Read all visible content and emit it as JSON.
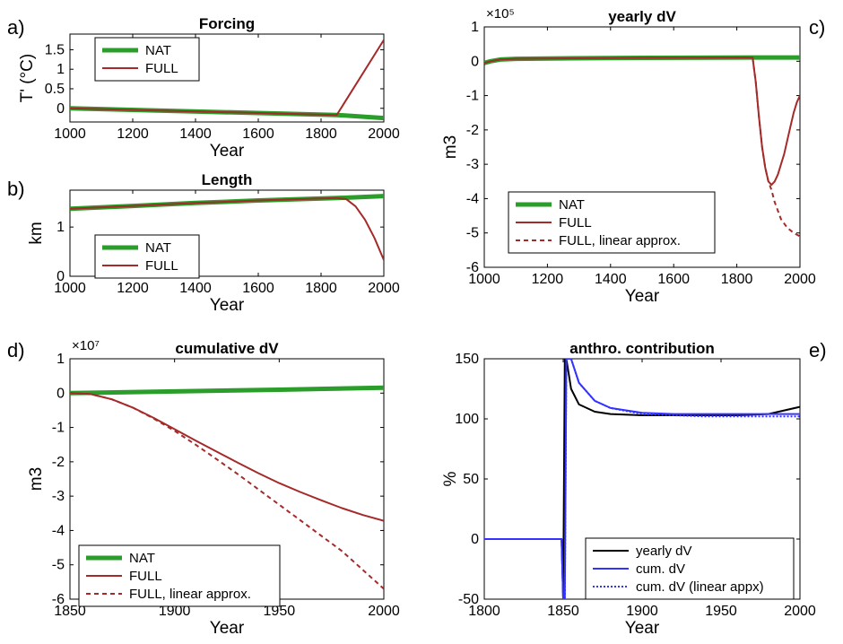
{
  "figure": {
    "panels": [
      {
        "id": "a",
        "letter": "a)"
      },
      {
        "id": "b",
        "letter": "b)"
      },
      {
        "id": "c",
        "letter": "c)"
      },
      {
        "id": "d",
        "letter": "d)"
      },
      {
        "id": "e",
        "letter": "e)"
      }
    ]
  },
  "colors": {
    "nat": "#2a9d2a",
    "full": "#a52a2a",
    "yearly": "#000000",
    "cum": "#3333ff",
    "cum_linear": "#3333ff"
  },
  "chart_data": [
    {
      "id": "a",
      "type": "line",
      "title": "Forcing",
      "xlabel": "Year",
      "ylabel": "T' (°C)",
      "xlim": [
        1000,
        2000
      ],
      "ylim": [
        -0.35,
        1.9
      ],
      "xticks": [
        1000,
        1200,
        1400,
        1600,
        1800,
        2000
      ],
      "yticks": [
        0,
        0.5,
        1,
        1.5
      ],
      "ytick_labels": [
        "0",
        "0.5",
        "1",
        "1.5"
      ],
      "legend_position": "top-left",
      "series": [
        {
          "name": "NAT",
          "x": [
            1000,
            1850,
            2000
          ],
          "y": [
            0.0,
            -0.17,
            -0.25
          ],
          "style": "thick",
          "color_key": "nat"
        },
        {
          "name": "FULL",
          "x": [
            1000,
            1850,
            2000
          ],
          "y": [
            0.0,
            -0.17,
            1.75
          ],
          "style": "solid",
          "color_key": "full"
        }
      ]
    },
    {
      "id": "b",
      "type": "line",
      "title": "Length",
      "xlabel": "Year",
      "ylabel": "km",
      "xlim": [
        1000,
        2000
      ],
      "ylim": [
        0,
        1.75
      ],
      "xticks": [
        1000,
        1200,
        1400,
        1600,
        1800,
        2000
      ],
      "yticks": [
        0,
        1
      ],
      "ytick_labels": [
        "0",
        "1"
      ],
      "legend_position": "bottom-left",
      "series": [
        {
          "name": "NAT",
          "x": [
            1000,
            1200,
            1400,
            1600,
            1850,
            2000
          ],
          "y": [
            1.37,
            1.43,
            1.49,
            1.54,
            1.59,
            1.63
          ],
          "style": "thick",
          "color_key": "nat"
        },
        {
          "name": "FULL",
          "x": [
            1000,
            1200,
            1400,
            1600,
            1850,
            1880,
            1910,
            1940,
            1970,
            2000
          ],
          "y": [
            1.37,
            1.43,
            1.49,
            1.54,
            1.59,
            1.57,
            1.42,
            1.15,
            0.78,
            0.33
          ],
          "style": "solid",
          "color_key": "full"
        }
      ]
    },
    {
      "id": "c",
      "type": "line",
      "title": "yearly dV",
      "xlabel": "Year",
      "ylabel": "m3",
      "exponent": "×10⁵",
      "xlim": [
        1000,
        2000
      ],
      "ylim": [
        -6,
        1
      ],
      "xticks": [
        1000,
        1200,
        1400,
        1600,
        1800,
        2000
      ],
      "yticks": [
        -6,
        -5,
        -4,
        -3,
        -2,
        -1,
        0,
        1
      ],
      "ytick_labels": [
        "-6",
        "-5",
        "-4",
        "-3",
        "-2",
        "-1",
        "0",
        "1"
      ],
      "legend_position": "bottom-left",
      "series": [
        {
          "name": "NAT",
          "x": [
            1000,
            1020,
            1050,
            1100,
            1200,
            1500,
            1850,
            2000
          ],
          "y": [
            -0.05,
            0.0,
            0.05,
            0.07,
            0.08,
            0.1,
            0.11,
            0.11
          ],
          "style": "thick",
          "color_key": "nat"
        },
        {
          "name": "FULL",
          "x": [
            1000,
            1020,
            1050,
            1100,
            1200,
            1500,
            1850,
            1860,
            1870,
            1880,
            1890,
            1900,
            1910,
            1920,
            1930,
            1940,
            1950,
            1960,
            1970,
            1980,
            1990,
            2000
          ],
          "y": [
            -0.05,
            0.0,
            0.05,
            0.07,
            0.08,
            0.1,
            0.11,
            -0.6,
            -1.6,
            -2.5,
            -3.1,
            -3.5,
            -3.6,
            -3.5,
            -3.3,
            -3.0,
            -2.7,
            -2.3,
            -1.9,
            -1.5,
            -1.2,
            -1.0
          ],
          "style": "solid",
          "color_key": "full"
        },
        {
          "name": "FULL, linear approx.",
          "x": [
            1850,
            1860,
            1870,
            1880,
            1890,
            1900,
            1910,
            1920,
            1940,
            1960,
            1980,
            2000
          ],
          "y": [
            0.11,
            -0.6,
            -1.6,
            -2.5,
            -3.1,
            -3.5,
            -3.75,
            -4.1,
            -4.6,
            -4.85,
            -5.0,
            -5.1
          ],
          "style": "dashed",
          "color_key": "full"
        }
      ]
    },
    {
      "id": "d",
      "type": "line",
      "title": "cumulative dV",
      "xlabel": "Year",
      "ylabel": "m3",
      "exponent": "×10⁷",
      "xlim": [
        1850,
        2000
      ],
      "ylim": [
        -6,
        1
      ],
      "xticks": [
        1850,
        1900,
        1950,
        2000
      ],
      "yticks": [
        -6,
        -5,
        -4,
        -3,
        -2,
        -1,
        0,
        1
      ],
      "ytick_labels": [
        "-6",
        "-5",
        "-4",
        "-3",
        "-2",
        "-1",
        "0",
        "1"
      ],
      "legend_position": "bottom-left",
      "series": [
        {
          "name": "NAT",
          "x": [
            1850,
            1900,
            1950,
            2000
          ],
          "y": [
            0.0,
            0.5,
            1.0,
            1.6
          ],
          "style": "thick",
          "color_key": "nat",
          "scale": 0.1
        },
        {
          "name": "FULL",
          "x": [
            1850,
            1860,
            1870,
            1880,
            1890,
            1900,
            1910,
            1920,
            1930,
            1940,
            1950,
            1960,
            1970,
            1980,
            1990,
            2000
          ],
          "y": [
            0.0,
            -0.03,
            -0.18,
            -0.42,
            -0.72,
            -1.05,
            -1.38,
            -1.7,
            -2.02,
            -2.33,
            -2.62,
            -2.88,
            -3.12,
            -3.35,
            -3.55,
            -3.72
          ],
          "style": "solid",
          "color_key": "full"
        },
        {
          "name": "FULL, linear approx.",
          "x": [
            1850,
            1860,
            1870,
            1880,
            1890,
            1900,
            1910,
            1920,
            1930,
            1940,
            1950,
            1960,
            1970,
            1980,
            1990,
            2000
          ],
          "y": [
            0.0,
            -0.03,
            -0.18,
            -0.42,
            -0.74,
            -1.1,
            -1.5,
            -1.92,
            -2.35,
            -2.8,
            -3.25,
            -3.7,
            -4.15,
            -4.6,
            -5.15,
            -5.7
          ],
          "style": "dashed",
          "color_key": "full"
        }
      ]
    },
    {
      "id": "e",
      "type": "line",
      "title": "anthro. contribution",
      "xlabel": "Year",
      "ylabel": "%",
      "xlim": [
        1800,
        2000
      ],
      "ylim": [
        -50,
        150
      ],
      "xticks": [
        1800,
        1850,
        1900,
        1950,
        2000
      ],
      "yticks": [
        -50,
        0,
        50,
        100,
        150
      ],
      "ytick_labels": [
        "-50",
        "0",
        "50",
        "100",
        "150"
      ],
      "legend_position": "bottom-right",
      "series": [
        {
          "name": "yearly dV",
          "x": [
            1800,
            1849,
            1850,
            1851,
            1852,
            1855,
            1860,
            1870,
            1880,
            1900,
            1920,
            1940,
            1960,
            1980,
            2000
          ],
          "y": [
            0,
            0,
            -50,
            150,
            150,
            125,
            112,
            106,
            104,
            103,
            103,
            103,
            103,
            104,
            110
          ],
          "style": "solid",
          "color_key": "yearly"
        },
        {
          "name": "cum. dV",
          "x": [
            1800,
            1849,
            1850,
            1851,
            1852,
            1855,
            1860,
            1870,
            1880,
            1900,
            1920,
            1940,
            1960,
            1980,
            2000
          ],
          "y": [
            0,
            0,
            -50,
            -50,
            150,
            150,
            130,
            115,
            109,
            105,
            104,
            104,
            104,
            104,
            104
          ],
          "style": "solid",
          "color_key": "cum"
        },
        {
          "name": "cum. dV (linear appx)",
          "x": [
            1800,
            1849,
            1850,
            1851,
            1852,
            1855,
            1860,
            1870,
            1880,
            1900,
            1920,
            1940,
            1960,
            1980,
            2000
          ],
          "y": [
            0,
            0,
            -50,
            -50,
            150,
            150,
            130,
            115,
            109,
            104,
            103,
            102,
            102,
            102,
            102
          ],
          "style": "dotted",
          "color_key": "cum_linear"
        }
      ]
    }
  ]
}
